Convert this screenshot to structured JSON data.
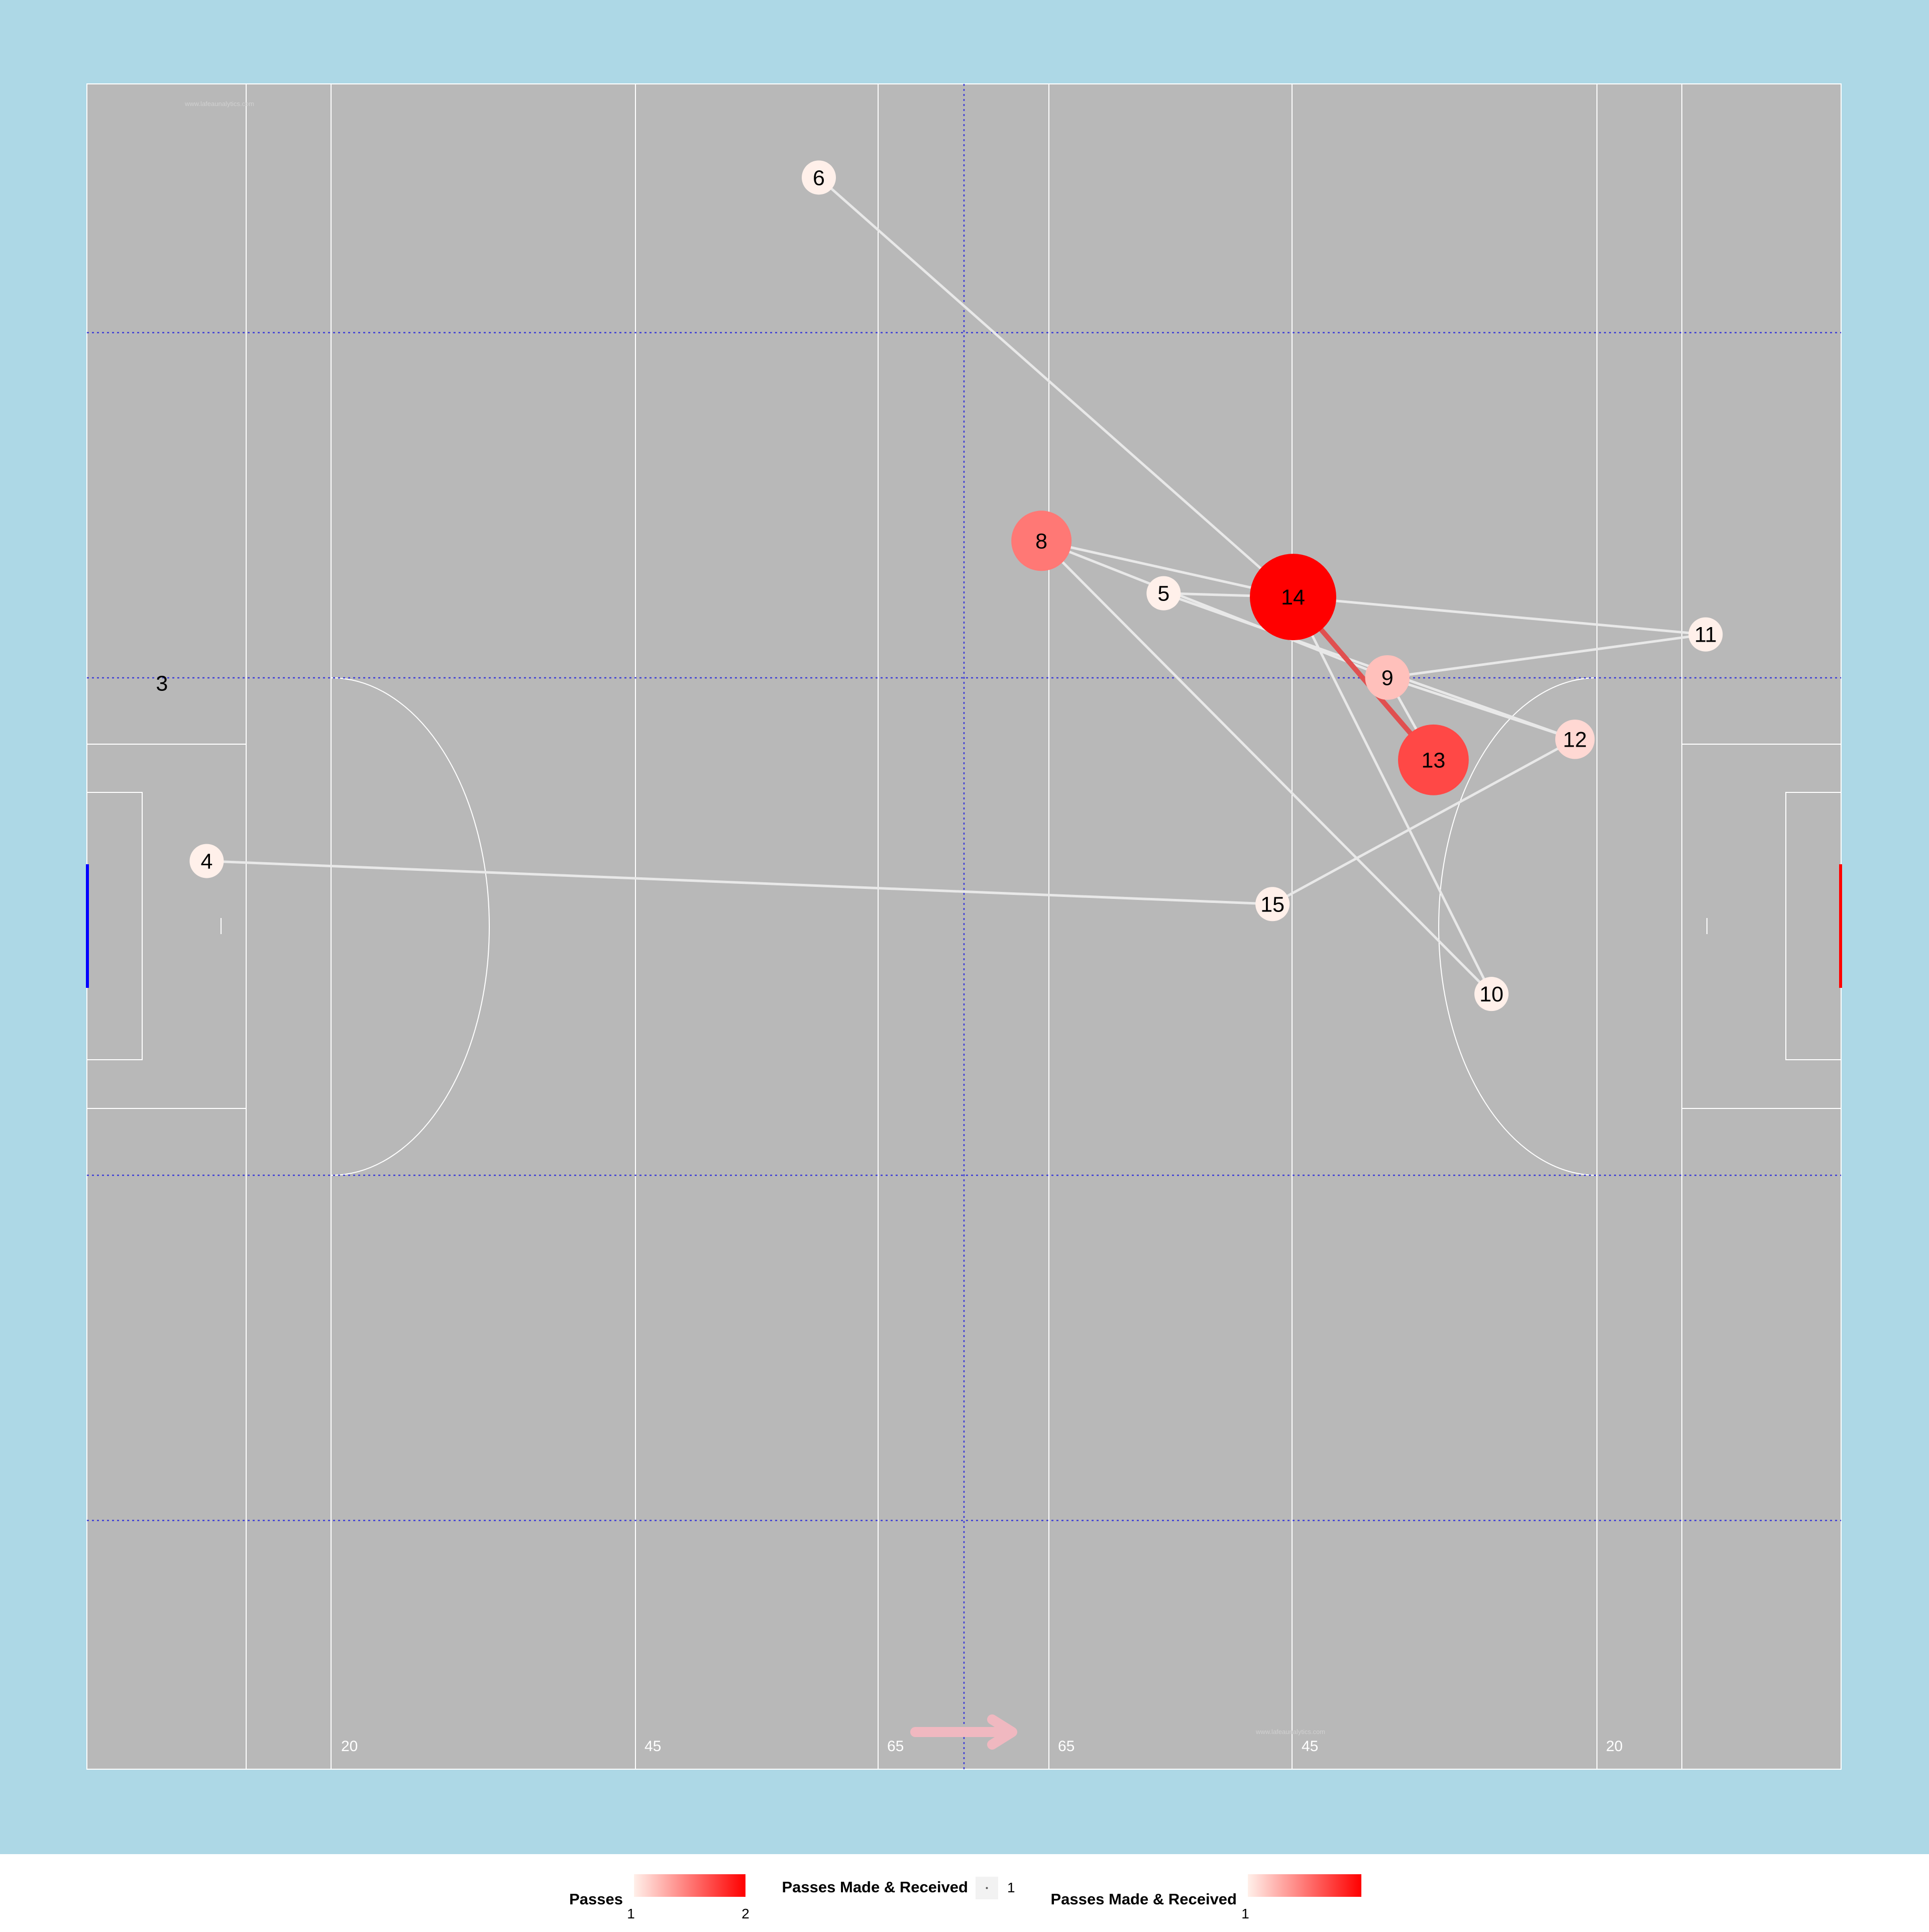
{
  "colors": {
    "background": "#add8e6",
    "pitch": "#b8b8b8",
    "pitch_lines": "#ffffff",
    "zone_lines": "#3b3bd6",
    "legend_bg": "#ffffff",
    "low": "#fff0ea",
    "high": "#ff0000",
    "left_goal": "#0000ff",
    "right_goal": "#ff0000",
    "direction_arrow": "#f0b8c0",
    "edge_default": "#e8e8e8",
    "edge_strong": "#e05050"
  },
  "watermarks": [
    "www.lafeaunalytics.com",
    "www.lafeaunalytics.com"
  ],
  "chart_data": {
    "type": "network",
    "title": "",
    "field": {
      "length": 145,
      "width": 90,
      "distance_labels": [
        "20",
        "45",
        "65",
        "65",
        "45",
        "20"
      ]
    },
    "nodes": [
      {
        "id": "3",
        "x": 6.2,
        "y": 58.0,
        "passes": 0
      },
      {
        "id": "4",
        "x": 9.9,
        "y": 48.5,
        "passes": 1
      },
      {
        "id": "5",
        "x": 89.0,
        "y": 62.8,
        "passes": 1
      },
      {
        "id": "6",
        "x": 60.5,
        "y": 85.0,
        "passes": 1
      },
      {
        "id": "8",
        "x": 78.9,
        "y": 65.6,
        "passes": 1.5
      },
      {
        "id": "9",
        "x": 107.5,
        "y": 58.3,
        "passes": 1.2
      },
      {
        "id": "10",
        "x": 116.1,
        "y": 41.4,
        "passes": 1
      },
      {
        "id": "11",
        "x": 133.8,
        "y": 60.6,
        "passes": 1
      },
      {
        "id": "12",
        "x": 123.0,
        "y": 55.0,
        "passes": 1.1
      },
      {
        "id": "13",
        "x": 111.3,
        "y": 53.9,
        "passes": 1.7
      },
      {
        "id": "14",
        "x": 99.7,
        "y": 62.6,
        "passes": 2
      },
      {
        "id": "15",
        "x": 98.0,
        "y": 46.2,
        "passes": 1
      }
    ],
    "edges": [
      {
        "from": "6",
        "to": "14",
        "passes": 1
      },
      {
        "from": "4",
        "to": "15",
        "passes": 1
      },
      {
        "from": "15",
        "to": "12",
        "passes": 1
      },
      {
        "from": "8",
        "to": "14",
        "passes": 1
      },
      {
        "from": "8",
        "to": "9",
        "passes": 1
      },
      {
        "from": "8",
        "to": "10",
        "passes": 1
      },
      {
        "from": "5",
        "to": "14",
        "passes": 1
      },
      {
        "from": "5",
        "to": "12",
        "passes": 1
      },
      {
        "from": "14",
        "to": "13",
        "passes": 2
      },
      {
        "from": "14",
        "to": "11",
        "passes": 1
      },
      {
        "from": "14",
        "to": "10",
        "passes": 1
      },
      {
        "from": "9",
        "to": "11",
        "passes": 1
      },
      {
        "from": "9",
        "to": "12",
        "passes": 1
      },
      {
        "from": "9",
        "to": "13",
        "passes": 1
      }
    ],
    "legend": {
      "passes": {
        "title": "Passes",
        "min_label": "1",
        "max_label": "2"
      },
      "made": {
        "title": "Passes Made & Received",
        "value_label": "1"
      },
      "received": {
        "title": "Passes Made & Received",
        "min_label": "1"
      }
    }
  }
}
